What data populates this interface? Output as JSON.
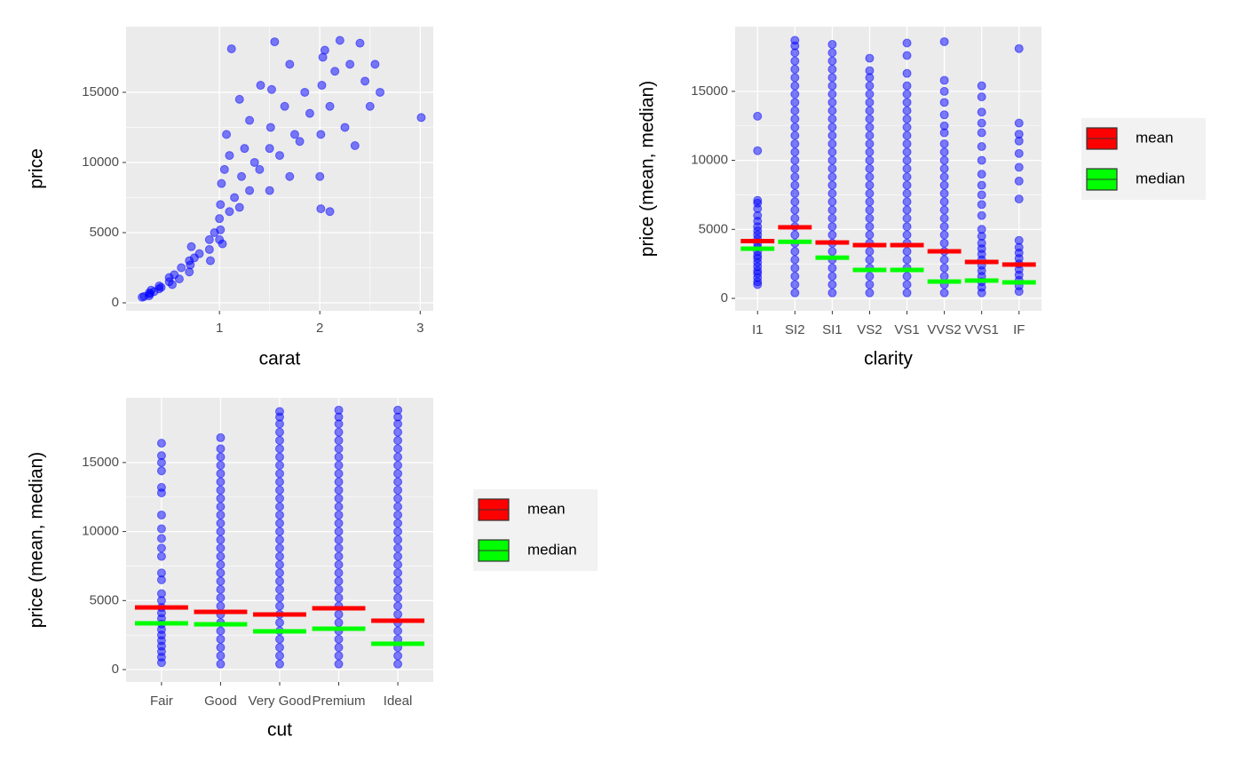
{
  "chart_data": [
    {
      "type": "scatter",
      "x_label": "carat",
      "y_label": "price",
      "color": "#0000ff",
      "opacity": 0.5,
      "grid": true,
      "xlim": [
        0.07,
        3.13
      ],
      "ylim": [
        -570,
        19680
      ],
      "xticks": [
        1,
        2,
        3
      ],
      "yticks": [
        0,
        5000,
        10000,
        15000
      ],
      "x": [
        0.23,
        0.25,
        0.3,
        0.3,
        0.31,
        0.32,
        0.35,
        0.4,
        0.4,
        0.42,
        0.5,
        0.5,
        0.53,
        0.55,
        0.6,
        0.62,
        0.7,
        0.7,
        0.71,
        0.72,
        0.75,
        0.8,
        0.9,
        0.9,
        0.91,
        0.95,
        1.0,
        1.0,
        1.01,
        1.01,
        1.02,
        1.03,
        1.05,
        1.07,
        1.1,
        1.1,
        1.12,
        1.15,
        1.2,
        1.2,
        1.22,
        1.25,
        1.3,
        1.3,
        1.35,
        1.4,
        1.41,
        1.5,
        1.5,
        1.51,
        1.52,
        1.55,
        1.6,
        1.65,
        1.7,
        1.7,
        1.75,
        1.8,
        1.85,
        1.9,
        2.0,
        2.01,
        2.01,
        2.02,
        2.03,
        2.05,
        2.1,
        2.1,
        2.15,
        2.2,
        2.25,
        2.3,
        2.35,
        2.4,
        2.45,
        2.5,
        2.55,
        2.6,
        3.01
      ],
      "values": [
        400,
        450,
        500,
        700,
        650,
        900,
        800,
        1000,
        1200,
        1100,
        1500,
        1800,
        1300,
        2000,
        1700,
        2500,
        2200,
        3000,
        2700,
        4000,
        3200,
        3500,
        3800,
        4500,
        3000,
        5000,
        4500,
        6000,
        5200,
        7000,
        8500,
        4200,
        9500,
        12000,
        6500,
        10500,
        18100,
        7500,
        6800,
        14500,
        9000,
        11000,
        8000,
        13000,
        10000,
        9500,
        15500,
        8000,
        11000,
        12500,
        15200,
        18600,
        10500,
        14000,
        9000,
        17000,
        12000,
        11500,
        15000,
        13500,
        9000,
        6700,
        12000,
        15500,
        17500,
        18000,
        14000,
        6500,
        16500,
        18700,
        12500,
        17000,
        11200,
        18500,
        15800,
        14000,
        17000,
        15000,
        13200
      ]
    },
    {
      "type": "strip",
      "x_label": "clarity",
      "y_label": "price (mean, median)",
      "points_color": "#0000ff",
      "opacity": 0.5,
      "grid": true,
      "legend": "right",
      "ylim": [
        -900,
        19690
      ],
      "yticks": [
        0,
        5000,
        10000,
        15000
      ],
      "categories": [
        "I1",
        "SI2",
        "SI1",
        "VS2",
        "VS1",
        "VVS2",
        "VVS1",
        "IF"
      ],
      "strips": [
        [
          1000,
          1200,
          1500,
          1800,
          2000,
          2300,
          2600,
          2900,
          3100,
          3400,
          3700,
          4000,
          4300,
          4600,
          4900,
          5200,
          5600,
          6000,
          6500,
          6900,
          7100,
          10700,
          13200
        ],
        [
          400,
          1000,
          1600,
          2200,
          2800,
          3400,
          4000,
          4600,
          5200,
          5800,
          6400,
          7000,
          7600,
          8200,
          8800,
          9400,
          10000,
          10600,
          11200,
          11800,
          12400,
          13000,
          13600,
          14200,
          14800,
          15400,
          16000,
          16600,
          17200,
          17800,
          18300,
          18700
        ],
        [
          400,
          1000,
          1600,
          2200,
          2800,
          3400,
          4000,
          4600,
          5200,
          5800,
          6400,
          7000,
          7600,
          8200,
          8800,
          9400,
          10000,
          10600,
          11200,
          11800,
          12400,
          13000,
          13600,
          14200,
          14800,
          15400,
          16000,
          16600,
          17200,
          17800,
          18400
        ],
        [
          400,
          1000,
          1600,
          2200,
          2800,
          3400,
          4000,
          4600,
          5200,
          5800,
          6400,
          7000,
          7600,
          8200,
          8800,
          9400,
          10000,
          10600,
          11200,
          11800,
          12400,
          13000,
          13600,
          14200,
          14800,
          15400,
          16000,
          16500,
          17400
        ],
        [
          400,
          1000,
          1600,
          2200,
          2800,
          3400,
          4000,
          4600,
          5200,
          5800,
          6400,
          7000,
          7600,
          8200,
          8800,
          9400,
          10000,
          10600,
          11200,
          11800,
          12400,
          13000,
          13600,
          14200,
          14800,
          15400,
          16300,
          17600,
          18500
        ],
        [
          400,
          1000,
          1600,
          2200,
          2800,
          3400,
          4000,
          4600,
          5200,
          5800,
          6400,
          7000,
          7600,
          8200,
          8800,
          9400,
          10000,
          10600,
          11200,
          12000,
          12500,
          13300,
          14200,
          15000,
          15800,
          18600
        ],
        [
          400,
          800,
          1200,
          1600,
          2000,
          2400,
          2800,
          3200,
          3600,
          4000,
          4500,
          5000,
          6000,
          6800,
          7500,
          8200,
          9000,
          10000,
          11000,
          12000,
          12700,
          13500,
          14600,
          15400
        ],
        [
          500,
          900,
          1300,
          1700,
          2100,
          2500,
          2900,
          3300,
          3700,
          4200,
          7200,
          8500,
          9500,
          10500,
          11400,
          11900,
          12700,
          18100
        ]
      ],
      "series": [
        {
          "name": "mean",
          "color": "#ff0000",
          "values": [
            4150,
            5150,
            4050,
            3860,
            3860,
            3410,
            2640,
            2450
          ]
        },
        {
          "name": "median",
          "color": "#00ff00",
          "values": [
            3600,
            4100,
            2950,
            2060,
            2060,
            1220,
            1290,
            1160
          ]
        }
      ]
    },
    {
      "type": "strip",
      "x_label": "cut",
      "y_label": "price (mean, median)",
      "points_color": "#0000ff",
      "opacity": 0.5,
      "grid": true,
      "legend": "right",
      "ylim": [
        -900,
        19690
      ],
      "yticks": [
        0,
        5000,
        10000,
        15000
      ],
      "categories": [
        "Fair",
        "Good",
        "Very Good",
        "Premium",
        "Ideal"
      ],
      "strips": [
        [
          500,
          900,
          1300,
          1700,
          2100,
          2500,
          2900,
          3300,
          3700,
          4100,
          4500,
          5000,
          5500,
          6500,
          7000,
          8200,
          8800,
          9500,
          10200,
          11200,
          12800,
          13200,
          14400,
          15000,
          15500,
          16400
        ],
        [
          400,
          1000,
          1600,
          2200,
          2800,
          3400,
          4000,
          4600,
          5200,
          5800,
          6400,
          7000,
          7600,
          8200,
          8800,
          9400,
          10000,
          10600,
          11200,
          11800,
          12400,
          13000,
          13600,
          14200,
          14800,
          15400,
          16000,
          16800
        ],
        [
          400,
          1000,
          1600,
          2200,
          2800,
          3400,
          4000,
          4600,
          5200,
          5800,
          6400,
          7000,
          7600,
          8200,
          8800,
          9400,
          10000,
          10600,
          11200,
          11800,
          12400,
          13000,
          13600,
          14200,
          14800,
          15400,
          16000,
          16600,
          17200,
          17800,
          18300,
          18700
        ],
        [
          400,
          1000,
          1600,
          2200,
          2800,
          3400,
          4000,
          4600,
          5200,
          5800,
          6400,
          7000,
          7600,
          8200,
          8800,
          9400,
          10000,
          10600,
          11200,
          11800,
          12400,
          13000,
          13600,
          14200,
          14800,
          15400,
          16000,
          16600,
          17200,
          17800,
          18300,
          18800
        ],
        [
          400,
          1000,
          1600,
          2200,
          2800,
          3400,
          4000,
          4600,
          5200,
          5800,
          6400,
          7000,
          7600,
          8200,
          8800,
          9400,
          10000,
          10600,
          11200,
          11800,
          12400,
          13000,
          13600,
          14200,
          14800,
          15400,
          16000,
          16600,
          17200,
          17800,
          18300,
          18800
        ]
      ],
      "series": [
        {
          "name": "mean",
          "color": "#ff0000",
          "values": [
            4500,
            4180,
            3990,
            4440,
            3540
          ]
        },
        {
          "name": "median",
          "color": "#00ff00",
          "values": [
            3350,
            3280,
            2770,
            2960,
            1870
          ]
        }
      ]
    }
  ]
}
